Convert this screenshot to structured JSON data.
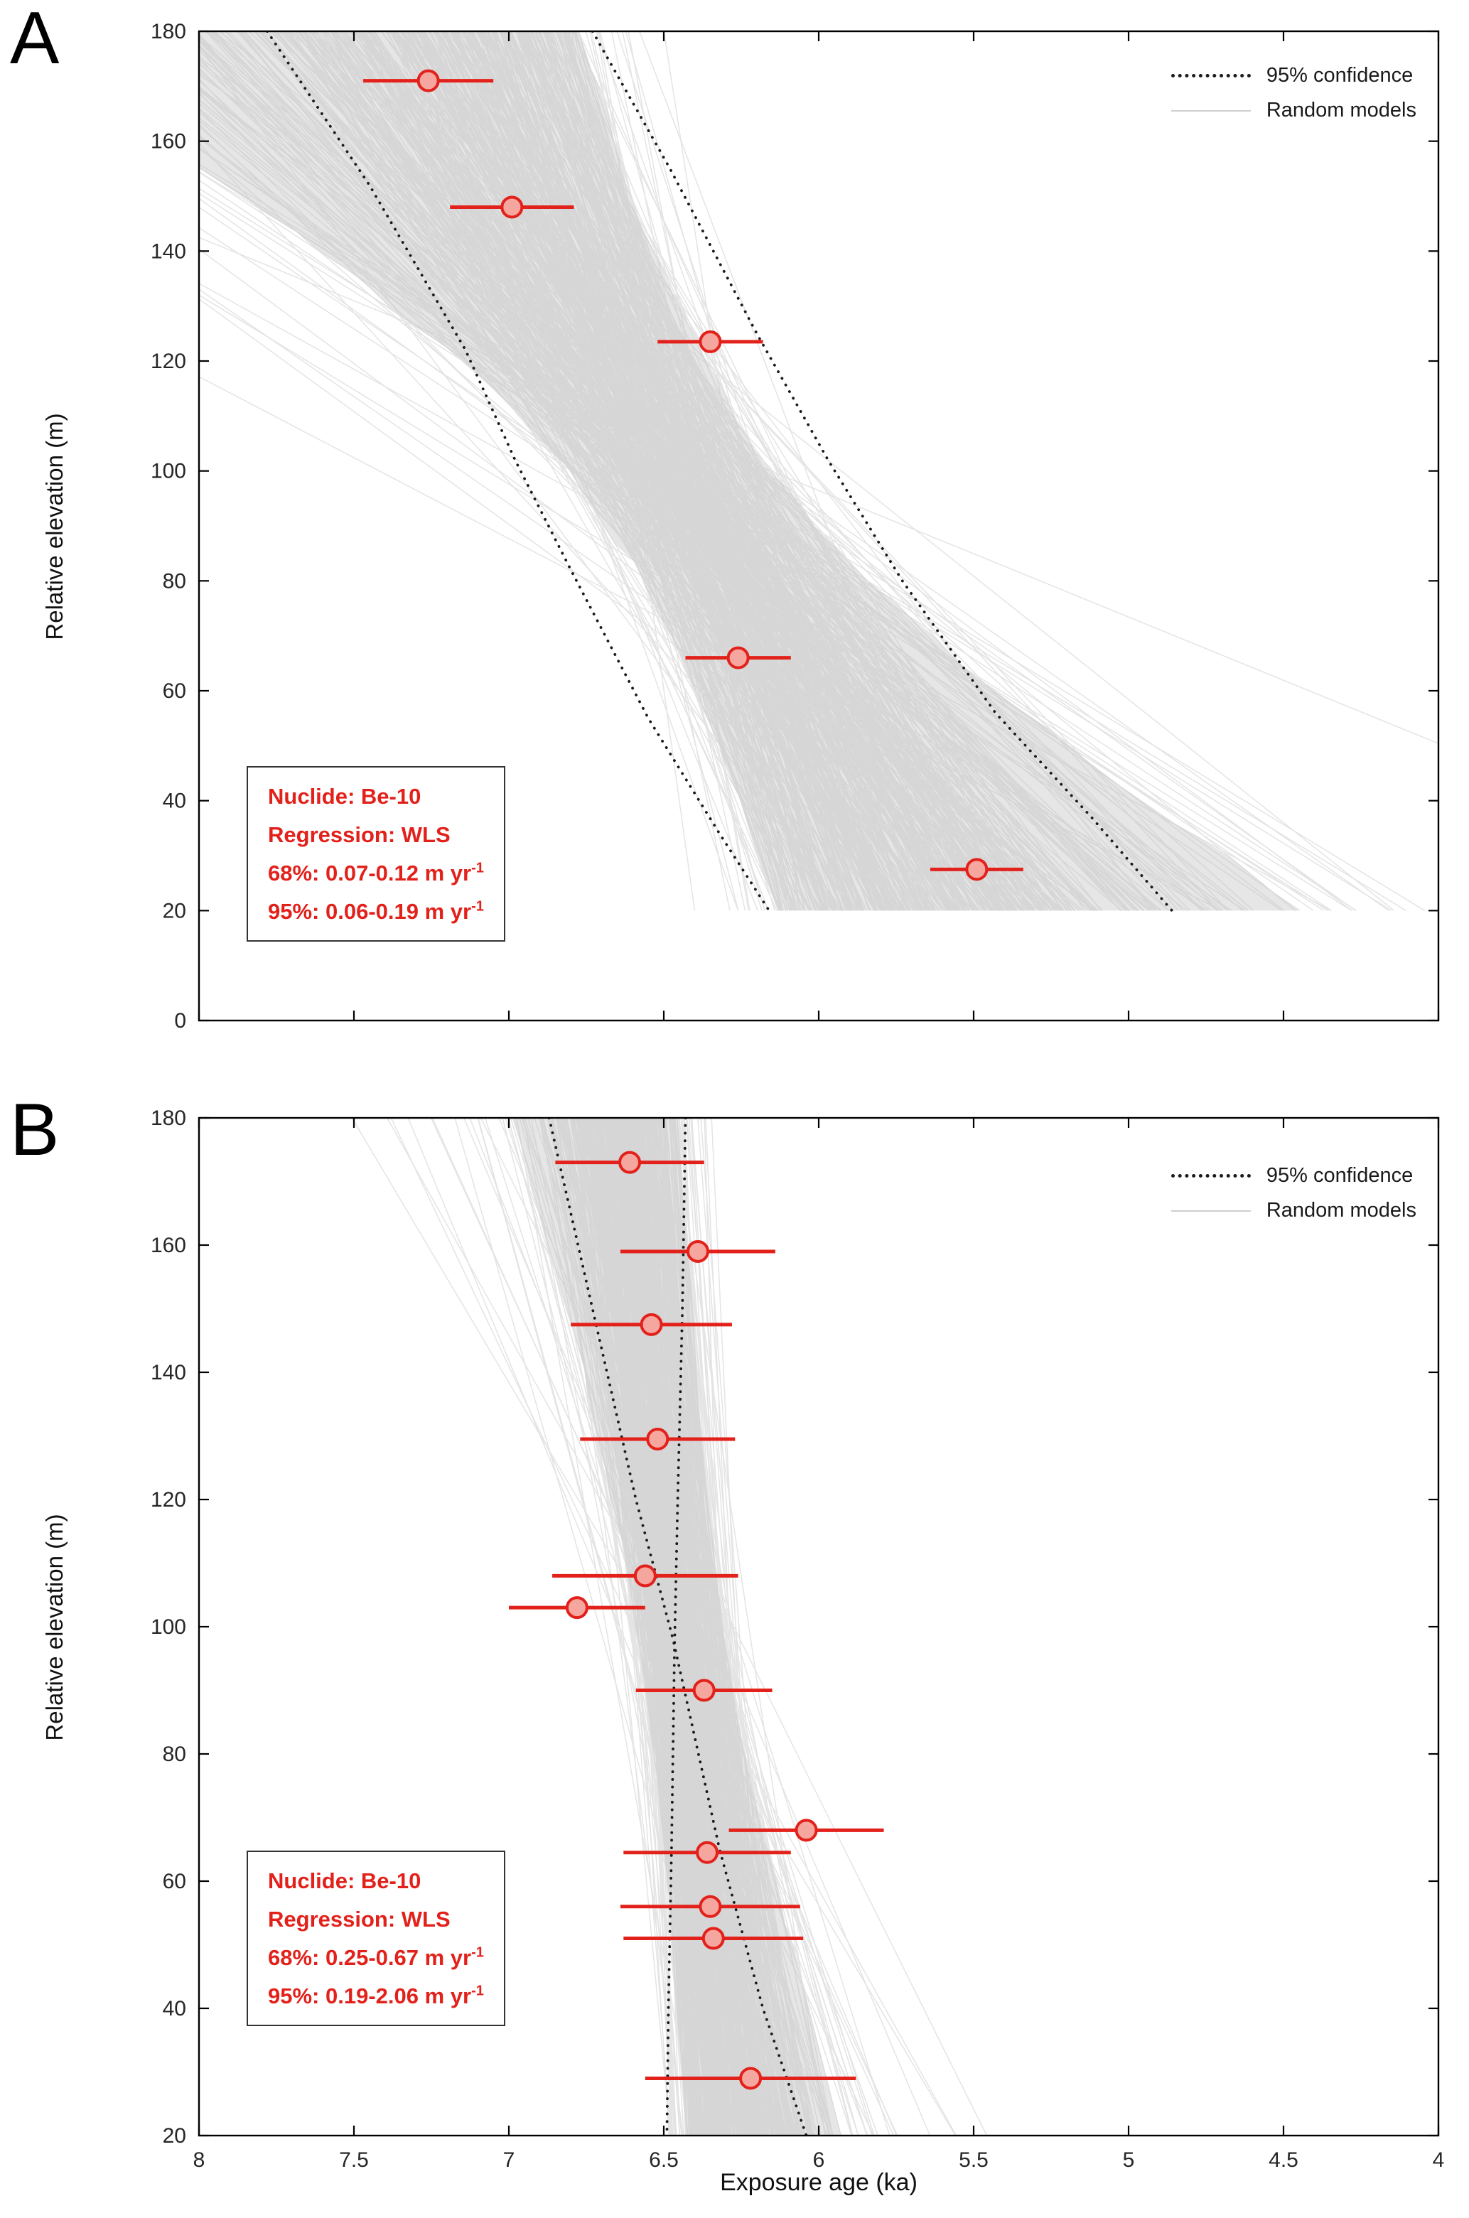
{
  "figure": {
    "background": "#ffffff"
  },
  "colors": {
    "data_red": "#e3211b",
    "marker_fill": "#f5a79f",
    "random_line": "#c4c4c4",
    "band_fill": "#e6e6e6",
    "confidence": "#1a1a1a",
    "axis": "#000000",
    "tick_label": "#262626"
  },
  "chart_data": [
    {
      "type": "scatter",
      "panel_letter": "A",
      "title": "",
      "xlabel": "",
      "ylabel": "Relative elevation (m)",
      "xlim": [
        8,
        4
      ],
      "ylim": [
        0,
        180
      ],
      "x_axis_reversed": true,
      "grid": false,
      "xticks": [
        8,
        7.5,
        7,
        6.5,
        6,
        5.5,
        5,
        4.5,
        4
      ],
      "yticks": [
        0,
        20,
        40,
        60,
        80,
        100,
        120,
        140,
        160,
        180
      ],
      "show_x_tick_labels": false,
      "legend": {
        "position": "top-right",
        "entries": [
          {
            "label": "95% confidence",
            "style": "dotted-black"
          },
          {
            "label": "Random models",
            "style": "thin-gray"
          }
        ]
      },
      "points": [
        {
          "age": 7.26,
          "elev": 171.0,
          "xerr": 0.21
        },
        {
          "age": 6.99,
          "elev": 148.0,
          "xerr": 0.2
        },
        {
          "age": 6.35,
          "elev": 123.5,
          "xerr": 0.17
        },
        {
          "age": 6.26,
          "elev": 66.0,
          "xerr": 0.17
        },
        {
          "age": 5.49,
          "elev": 27.5,
          "xerr": 0.15
        }
      ],
      "confidence_paths": [
        [
          [
            7.78,
            180
          ],
          [
            7.45,
            152
          ],
          [
            7.14,
            122
          ],
          [
            6.98,
            102
          ],
          [
            6.8,
            82
          ],
          [
            6.55,
            55
          ],
          [
            6.32,
            34
          ],
          [
            6.16,
            20
          ]
        ],
        [
          [
            6.73,
            180
          ],
          [
            6.48,
            155
          ],
          [
            6.2,
            125
          ],
          [
            5.97,
            102
          ],
          [
            5.73,
            80
          ],
          [
            5.43,
            56
          ],
          [
            5.12,
            37
          ],
          [
            4.86,
            20
          ]
        ]
      ],
      "random_models": {
        "n_lines": 500,
        "seed": 7,
        "rate_median_m_per_ka": 95,
        "rate_log_sd": 0.45,
        "pivot_age_ka": 6.43,
        "pivot_age_sd": 0.12,
        "pivot_elev_m": 95,
        "pivot_elev_sd": 10,
        "elev_range": [
          20,
          180
        ],
        "band_percentile": 0.03
      },
      "annotation": {
        "nuclide_line": "Nuclide: Be-10",
        "regression_line": "Regression: WLS",
        "ci68_prefix": "68%: 0.07-0.12 m yr",
        "ci68_sup": "-1",
        "ci95_prefix": "95%: 0.06-0.19 m yr",
        "ci95_sup": "-1"
      }
    },
    {
      "type": "scatter",
      "panel_letter": "B",
      "title": "",
      "xlabel": "Exposure age (ka)",
      "ylabel": "Relative elevation (m)",
      "xlim": [
        8,
        4
      ],
      "ylim": [
        20,
        180
      ],
      "x_axis_reversed": true,
      "grid": false,
      "xticks": [
        8,
        7.5,
        7,
        6.5,
        6,
        5.5,
        5,
        4.5,
        4
      ],
      "yticks": [
        20,
        40,
        60,
        80,
        100,
        120,
        140,
        160,
        180
      ],
      "show_x_tick_labels": true,
      "legend": {
        "position": "top-right",
        "entries": [
          {
            "label": "95% confidence",
            "style": "dotted-black"
          },
          {
            "label": "Random models",
            "style": "thin-gray"
          }
        ]
      },
      "points": [
        {
          "age": 6.61,
          "elev": 173.0,
          "xerr": 0.24
        },
        {
          "age": 6.39,
          "elev": 159.0,
          "xerr": 0.25
        },
        {
          "age": 6.54,
          "elev": 147.5,
          "xerr": 0.26
        },
        {
          "age": 6.52,
          "elev": 129.5,
          "xerr": 0.25
        },
        {
          "age": 6.56,
          "elev": 108.0,
          "xerr": 0.3
        },
        {
          "age": 6.78,
          "elev": 103.0,
          "xerr": 0.22
        },
        {
          "age": 6.37,
          "elev": 90.0,
          "xerr": 0.22
        },
        {
          "age": 6.04,
          "elev": 68.0,
          "xerr": 0.25
        },
        {
          "age": 6.36,
          "elev": 64.5,
          "xerr": 0.27
        },
        {
          "age": 6.35,
          "elev": 56.0,
          "xerr": 0.29
        },
        {
          "age": 6.34,
          "elev": 51.0,
          "xerr": 0.29
        },
        {
          "age": 6.22,
          "elev": 29.0,
          "xerr": 0.34
        }
      ],
      "confidence_paths": [
        [
          [
            6.87,
            180
          ],
          [
            6.73,
            150
          ],
          [
            6.59,
            120
          ],
          [
            6.47,
            98
          ],
          [
            6.32,
            65
          ],
          [
            6.18,
            40
          ],
          [
            6.04,
            20
          ]
        ],
        [
          [
            6.43,
            180
          ],
          [
            6.44,
            150
          ],
          [
            6.455,
            120
          ],
          [
            6.465,
            98
          ],
          [
            6.475,
            65
          ],
          [
            6.485,
            40
          ],
          [
            6.49,
            20
          ]
        ]
      ],
      "random_models": {
        "n_lines": 500,
        "seed": 13,
        "rate_median_m_per_ka": 420,
        "rate_log_sd": 0.55,
        "pivot_age_ka": 6.45,
        "pivot_age_sd": 0.07,
        "pivot_elev_m": 100,
        "pivot_elev_sd": 12,
        "elev_range": [
          20,
          180
        ],
        "band_percentile": 0.04
      },
      "annotation": {
        "nuclide_line": "Nuclide: Be-10",
        "regression_line": "Regression: WLS",
        "ci68_prefix": "68%: 0.25-0.67 m yr",
        "ci68_sup": "-1",
        "ci95_prefix": "95%: 0.19-2.06 m yr",
        "ci95_sup": "-1"
      }
    }
  ]
}
